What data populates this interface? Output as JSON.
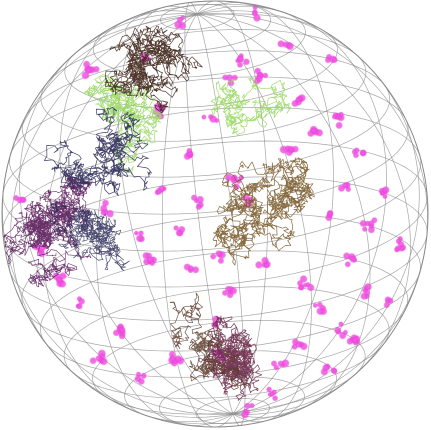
{
  "image": {
    "background": "#ffffff",
    "wireframe_color": "#8a8a8a",
    "walk_colors": {
      "brown": "#5a3a2a",
      "dark_brown": "#3e2418",
      "olive_brown": "#7a5a2a",
      "lime": "#98d860",
      "navy": "#2a2a58",
      "purple": "#5a1a5a",
      "maroon": "#6a2848"
    },
    "cluster_color": "#ee44dd"
  }
}
